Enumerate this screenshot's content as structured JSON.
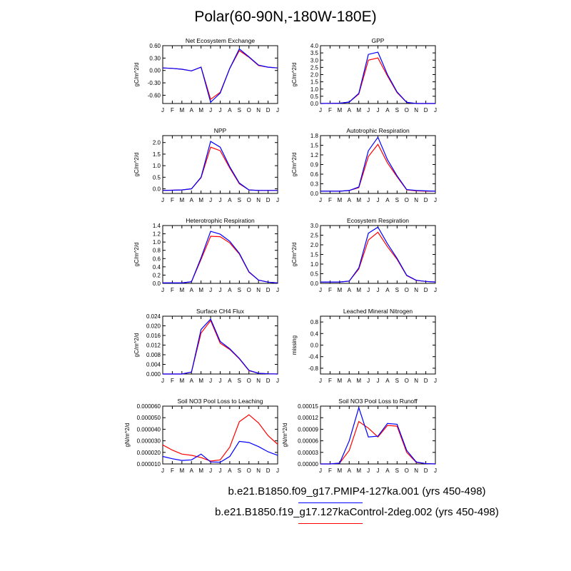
{
  "title": "Polar(60-90N,-180W-180E)",
  "colors": {
    "series1": "#0000ff",
    "series2": "#ff0000"
  },
  "legend": [
    {
      "label": "b.e21.B1850.f09_g17.PMIP4-127ka.001 (yrs 450-498)",
      "color": "#0000ff"
    },
    {
      "label": "b.e21.B1850.f19_g17.127kaControl-2deg.002 (yrs 450-498)",
      "color": "#ff0000"
    }
  ],
  "chart_data": [
    {
      "type": "line",
      "title": "Net Ecosystem Exchange",
      "ylabel": "gC/m^2/d",
      "x": [
        "J",
        "F",
        "M",
        "A",
        "M",
        "J",
        "J",
        "A",
        "S",
        "O",
        "N",
        "D",
        "J"
      ],
      "ylim": [
        -0.8,
        0.6
      ],
      "yticks": [
        0.6,
        0.3,
        0.0,
        -0.3,
        -0.6
      ],
      "yticklabels": [
        "0.60",
        "0.30",
        "0.00",
        "-0.30",
        "-0.60"
      ],
      "series": [
        {
          "values": [
            0.06,
            0.05,
            0.03,
            -0.01,
            0.08,
            -0.77,
            -0.55,
            0.05,
            0.52,
            0.33,
            0.13,
            0.08,
            0.06
          ]
        },
        {
          "values": [
            0.06,
            0.05,
            0.03,
            -0.01,
            0.08,
            -0.7,
            -0.53,
            0.05,
            0.48,
            0.32,
            0.12,
            0.08,
            0.06
          ]
        }
      ]
    },
    {
      "type": "line",
      "title": "GPP",
      "ylabel": "gC/m^2/d",
      "x": [
        "J",
        "F",
        "M",
        "A",
        "M",
        "J",
        "J",
        "A",
        "S",
        "O",
        "N",
        "D",
        "J"
      ],
      "ylim": [
        0,
        4.0
      ],
      "yticks": [
        0,
        0.5,
        1,
        1.5,
        2,
        2.5,
        3,
        3.5,
        4
      ],
      "yticklabels": [
        "0.0",
        "0.5",
        "1.0",
        "1.5",
        "2.0",
        "2.5",
        "3.0",
        "3.5",
        "4.0"
      ],
      "series": [
        {
          "values": [
            0.0,
            0.01,
            0.02,
            0.1,
            0.7,
            3.4,
            3.55,
            2.0,
            0.8,
            0.08,
            0.0,
            0.0,
            0.0
          ]
        },
        {
          "values": [
            0.0,
            0.01,
            0.02,
            0.1,
            0.65,
            3.0,
            3.15,
            1.9,
            0.75,
            0.07,
            0.0,
            0.0,
            0.0
          ]
        }
      ]
    },
    {
      "type": "line",
      "title": "NPP",
      "ylabel": "gC/m^2/d",
      "x": [
        "J",
        "F",
        "M",
        "A",
        "M",
        "J",
        "J",
        "A",
        "S",
        "O",
        "N",
        "D",
        "J"
      ],
      "ylim": [
        -0.2,
        2.3
      ],
      "yticks": [
        0,
        0.5,
        1,
        1.5,
        2
      ],
      "yticklabels": [
        "0.0",
        "0.5",
        "1.0",
        "1.5",
        "2.0"
      ],
      "series": [
        {
          "values": [
            -0.07,
            -0.06,
            -0.05,
            0.0,
            0.5,
            2.05,
            1.8,
            0.95,
            0.25,
            -0.05,
            -0.07,
            -0.07,
            -0.07
          ]
        },
        {
          "values": [
            -0.07,
            -0.06,
            -0.05,
            0.0,
            0.48,
            1.8,
            1.65,
            0.9,
            0.22,
            -0.05,
            -0.07,
            -0.07,
            -0.07
          ]
        }
      ]
    },
    {
      "type": "line",
      "title": "Autotrophic Respiration",
      "ylabel": "gC/m^2/d",
      "x": [
        "J",
        "F",
        "M",
        "A",
        "M",
        "J",
        "J",
        "A",
        "S",
        "O",
        "N",
        "D",
        "J"
      ],
      "ylim": [
        0,
        1.8
      ],
      "yticks": [
        0,
        0.3,
        0.6,
        0.9,
        1.2,
        1.5,
        1.8
      ],
      "yticklabels": [
        "0.0",
        "0.3",
        "0.6",
        "0.9",
        "1.2",
        "1.5",
        "1.8"
      ],
      "series": [
        {
          "values": [
            0.07,
            0.07,
            0.07,
            0.09,
            0.2,
            1.33,
            1.75,
            1.05,
            0.55,
            0.12,
            0.09,
            0.08,
            0.07
          ]
        },
        {
          "values": [
            0.07,
            0.07,
            0.07,
            0.09,
            0.18,
            1.15,
            1.53,
            0.95,
            0.52,
            0.11,
            0.08,
            0.07,
            0.07
          ]
        }
      ]
    },
    {
      "type": "line",
      "title": "Heterotrophic Respiration",
      "ylabel": "gC/m^2/d",
      "x": [
        "J",
        "F",
        "M",
        "A",
        "M",
        "J",
        "J",
        "A",
        "S",
        "O",
        "N",
        "D",
        "J"
      ],
      "ylim": [
        0,
        1.4
      ],
      "yticks": [
        0,
        0.2,
        0.4,
        0.6,
        0.8,
        1.0,
        1.2,
        1.4
      ],
      "yticklabels": [
        "0.0",
        "0.2",
        "0.4",
        "0.6",
        "0.8",
        "1.0",
        "1.2",
        "1.4"
      ],
      "series": [
        {
          "values": [
            0.01,
            0.01,
            0.01,
            0.04,
            0.62,
            1.26,
            1.19,
            1.02,
            0.73,
            0.28,
            0.08,
            0.03,
            0.01
          ]
        },
        {
          "values": [
            0.01,
            0.01,
            0.01,
            0.04,
            0.58,
            1.14,
            1.13,
            0.98,
            0.71,
            0.27,
            0.08,
            0.03,
            0.01
          ]
        }
      ]
    },
    {
      "type": "line",
      "title": "Ecosystem Respiration",
      "ylabel": "gC/m^2/d",
      "x": [
        "J",
        "F",
        "M",
        "A",
        "M",
        "J",
        "J",
        "A",
        "S",
        "O",
        "N",
        "D",
        "J"
      ],
      "ylim": [
        0,
        3.0
      ],
      "yticks": [
        0,
        0.5,
        1,
        1.5,
        2,
        2.5,
        3
      ],
      "yticklabels": [
        "0.0",
        "0.5",
        "1.0",
        "1.5",
        "2.0",
        "2.5",
        "3.0"
      ],
      "series": [
        {
          "values": [
            0.07,
            0.07,
            0.07,
            0.12,
            0.8,
            2.6,
            2.92,
            2.05,
            1.3,
            0.42,
            0.16,
            0.1,
            0.07
          ]
        },
        {
          "values": [
            0.07,
            0.07,
            0.07,
            0.12,
            0.75,
            2.25,
            2.65,
            1.9,
            1.25,
            0.4,
            0.15,
            0.1,
            0.07
          ]
        }
      ]
    },
    {
      "type": "line",
      "title": "Surface CH4 Flux",
      "ylabel": "gC/m^2/d",
      "x": [
        "J",
        "F",
        "M",
        "A",
        "M",
        "J",
        "J",
        "A",
        "S",
        "O",
        "N",
        "D",
        "J"
      ],
      "ylim": [
        0,
        0.024
      ],
      "yticks": [
        0,
        0.004,
        0.008,
        0.012,
        0.016,
        0.02,
        0.024
      ],
      "yticklabels": [
        "0.000",
        "0.004",
        "0.008",
        "0.012",
        "0.016",
        "0.020",
        "0.024"
      ],
      "series": [
        {
          "values": [
            0.0,
            0.0,
            0.0,
            0.0008,
            0.0185,
            0.0228,
            0.0135,
            0.0105,
            0.0065,
            0.0015,
            0.0003,
            0.0001,
            0.0
          ]
        },
        {
          "values": [
            0.0,
            0.0,
            0.0,
            0.0008,
            0.017,
            0.0222,
            0.0128,
            0.0102,
            0.0063,
            0.0014,
            0.0003,
            0.0001,
            0.0
          ]
        }
      ]
    },
    {
      "type": "line",
      "title": "Leached Mineral Nitrogen",
      "ylabel": "missing",
      "x": [
        "J",
        "F",
        "M",
        "A",
        "M",
        "J",
        "J",
        "A",
        "S",
        "O",
        "N",
        "D",
        "J"
      ],
      "ylim": [
        -1.0,
        1.0
      ],
      "yticks": [
        0.8,
        0.4,
        0.0,
        -0.4,
        -0.8
      ],
      "yticklabels": [
        "0.8",
        "0.4",
        "0.0",
        "-0.4",
        "-0.8"
      ],
      "series": []
    },
    {
      "type": "line",
      "title": "Soil NO3 Pool Loss to Leaching",
      "ylabel": "gN/m^2/d",
      "x": [
        "J",
        "F",
        "M",
        "A",
        "M",
        "J",
        "J",
        "A",
        "S",
        "O",
        "N",
        "D",
        "J"
      ],
      "ylim": [
        1e-05,
        6e-05
      ],
      "yticks": [
        1e-05,
        2e-05,
        3e-05,
        4e-05,
        5e-05,
        6e-05
      ],
      "yticklabels": [
        "0.000010",
        "0.000020",
        "0.000030",
        "0.000040",
        "0.000050",
        "0.000060"
      ],
      "series": [
        {
          "values": [
            1.65e-05,
            1.45e-05,
            1.3e-05,
            1.35e-05,
            1.85e-05,
            1.17e-05,
            1.15e-05,
            1.65e-05,
            2.95e-05,
            2.85e-05,
            2.5e-05,
            2.05e-05,
            1.75e-05
          ]
        },
        {
          "values": [
            2.65e-05,
            2.2e-05,
            1.85e-05,
            1.75e-05,
            1.55e-05,
            1.25e-05,
            1.35e-05,
            2.45e-05,
            4.65e-05,
            5.25e-05,
            4.55e-05,
            3.45e-05,
            2.7e-05
          ]
        }
      ]
    },
    {
      "type": "line",
      "title": "Soil NO3 Pool Loss to Runoff",
      "ylabel": "gN/m^2/d",
      "x": [
        "J",
        "F",
        "M",
        "A",
        "M",
        "J",
        "J",
        "A",
        "S",
        "O",
        "N",
        "D",
        "J"
      ],
      "ylim": [
        0,
        0.00015
      ],
      "yticks": [
        0,
        3e-05,
        6e-05,
        9e-05,
        0.00012,
        0.00015
      ],
      "yticklabels": [
        "0.00000",
        "0.00003",
        "0.00006",
        "0.00009",
        "0.00012",
        "0.00015"
      ],
      "series": [
        {
          "values": [
            0.0,
            0.0,
            2e-06,
            6e-05,
            0.000146,
            7e-05,
            7.2e-05,
            0.000105,
            0.000103,
            3.5e-05,
            5e-06,
            1e-06,
            0.0
          ]
        },
        {
          "values": [
            0.0,
            0.0,
            2e-06,
            3.5e-05,
            0.00011,
            9.3e-05,
            7e-05,
            0.0001,
            9.8e-05,
            3e-05,
            4e-06,
            1e-06,
            0.0
          ]
        }
      ]
    }
  ]
}
